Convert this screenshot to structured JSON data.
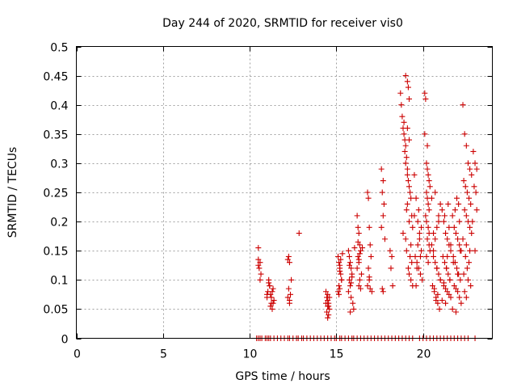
{
  "chart_data": {
    "type": "scatter",
    "title": "Day 244 of 2020, SRMTID for receiver vis0",
    "xlabel": "GPS time / hours",
    "ylabel": "SRMTID / TECUs",
    "xlim": [
      0,
      24
    ],
    "ylim": [
      0,
      0.5
    ],
    "xticks": [
      0,
      5,
      10,
      15,
      20
    ],
    "yticks": [
      0,
      0.05,
      0.1,
      0.15,
      0.2,
      0.25,
      0.3,
      0.35,
      0.4,
      0.45,
      0.5
    ],
    "grid": true,
    "legend": "none",
    "marker": "+",
    "series_color": "#cc0000",
    "series": [
      {
        "name": "SRMTID vis0",
        "x": [
          10.4,
          10.5,
          10.6,
          10.7,
          10.9,
          11.0,
          11.1,
          11.2,
          11.4,
          11.6,
          11.8,
          12.0,
          12.2,
          12.3,
          12.5,
          12.7,
          12.8,
          13.0,
          13.1,
          13.3,
          13.5,
          13.7,
          13.9,
          14.1,
          14.3,
          14.5,
          14.7,
          14.9,
          15.0,
          15.2,
          15.3,
          15.5,
          15.7,
          15.9,
          16.0,
          16.2,
          16.4,
          16.6,
          16.8,
          17.0,
          17.2,
          17.4,
          17.6,
          17.8,
          18.0,
          18.2,
          18.4,
          18.6,
          18.8,
          19.0,
          19.2,
          19.4,
          19.8,
          20.0,
          20.2,
          20.4,
          20.6,
          20.8,
          21.0,
          21.2,
          21.4,
          21.6,
          21.8,
          22.0,
          22.2,
          22.4,
          22.6,
          23.0,
          10.5,
          10.5,
          10.55,
          10.6,
          10.6,
          10.65,
          10.5,
          11.0,
          11.05,
          11.1,
          11.15,
          11.2,
          11.25,
          11.3,
          11.35,
          11.4,
          11.1,
          11.2,
          11.3,
          11.0,
          11.15,
          11.25,
          11.35,
          12.2,
          12.25,
          12.3,
          12.25,
          12.2,
          12.3,
          12.4,
          12.35,
          12.3,
          12.85,
          14.4,
          14.45,
          14.5,
          14.55,
          14.6,
          14.5,
          14.45,
          14.55,
          14.5,
          14.6,
          14.4,
          14.5,
          14.55,
          15.1,
          15.15,
          15.2,
          15.25,
          15.3,
          15.15,
          15.2,
          15.1,
          15.25,
          15.2,
          15.3,
          15.15,
          15.35,
          15.2,
          15.7,
          15.75,
          15.8,
          15.85,
          15.9,
          15.75,
          15.8,
          15.7,
          15.85,
          15.95,
          16.0,
          15.8,
          15.9,
          15.75,
          16.05,
          15.85,
          16.2,
          16.25,
          16.3,
          16.35,
          16.4,
          16.25,
          16.3,
          16.2,
          16.45,
          16.35,
          16.3,
          16.4,
          16.5,
          16.25,
          16.35,
          16.3,
          16.8,
          16.85,
          16.9,
          16.95,
          17.0,
          16.85,
          16.9,
          16.8,
          16.95,
          17.05,
          16.9,
          17.6,
          17.7,
          17.65,
          17.75,
          17.7,
          17.6,
          17.8,
          17.65,
          17.7,
          18.1,
          18.2,
          18.15,
          18.25,
          18.7,
          18.75,
          18.8,
          18.85,
          18.9,
          18.95,
          19.0,
          19.05,
          19.1,
          19.15,
          19.2,
          19.25,
          19.3,
          19.35,
          19.4,
          19.0,
          19.05,
          19.1,
          19.15,
          19.2,
          18.9,
          18.95,
          19.0,
          19.1,
          19.2,
          19.3,
          19.25,
          19.35,
          19.15,
          19.05,
          18.85,
          19.1,
          19.2,
          19.3,
          19.4,
          19.0,
          19.1,
          19.2,
          19.5,
          19.6,
          19.7,
          19.8,
          19.9,
          19.55,
          19.65,
          19.75,
          19.85,
          19.95,
          19.6,
          19.7,
          19.8,
          19.9,
          19.5,
          19.75,
          19.65,
          19.85,
          20.1,
          20.15,
          20.2,
          20.25,
          20.3,
          20.35,
          20.4,
          20.2,
          20.25,
          20.3,
          20.35,
          20.15,
          20.2,
          20.3,
          20.25,
          20.35,
          20.4,
          20.2,
          20.3,
          20.1,
          20.25,
          20.35,
          20.5,
          20.6,
          20.7,
          20.8,
          20.9,
          21.0,
          20.55,
          20.65,
          20.75,
          20.85,
          20.95,
          20.6,
          20.7,
          20.8,
          20.9,
          21.0,
          20.5,
          20.7,
          20.9,
          20.6,
          20.8,
          21.0,
          20.65,
          20.85,
          20.75,
          21.1,
          21.2,
          21.3,
          21.4,
          21.5,
          21.6,
          21.15,
          21.25,
          21.35,
          21.45,
          21.55,
          21.2,
          21.3,
          21.4,
          21.5,
          21.6,
          21.1,
          21.3,
          21.5,
          21.25,
          21.45,
          21.35,
          21.55,
          21.2,
          21.4,
          21.6,
          21.7,
          21.8,
          21.9,
          22.0,
          22.1,
          22.2,
          21.75,
          21.85,
          21.95,
          22.05,
          22.15,
          21.8,
          21.9,
          22.0,
          22.1,
          22.2,
          21.7,
          21.9,
          22.1,
          21.85,
          22.05,
          21.95,
          22.15,
          21.75,
          22.0,
          22.3,
          22.4,
          22.5,
          22.6,
          22.7,
          22.8,
          22.35,
          22.45,
          22.55,
          22.65,
          22.75,
          22.4,
          22.5,
          22.6,
          22.7,
          22.8,
          22.3,
          22.5,
          22.7,
          22.45,
          22.65,
          22.55,
          22.35,
          22.6,
          22.75,
          22.4,
          22.5,
          22.9,
          23.0,
          23.1,
          22.95,
          23.05,
          23.1,
          22.85,
          23.0
        ],
        "y": [
          0,
          0,
          0,
          0,
          0,
          0,
          0,
          0,
          0,
          0,
          0,
          0,
          0,
          0,
          0,
          0,
          0,
          0,
          0,
          0,
          0,
          0,
          0,
          0,
          0,
          0,
          0,
          0,
          0,
          0,
          0,
          0,
          0,
          0,
          0,
          0,
          0,
          0,
          0,
          0,
          0,
          0,
          0,
          0,
          0,
          0,
          0,
          0,
          0,
          0,
          0,
          0,
          0,
          0,
          0,
          0,
          0,
          0,
          0,
          0,
          0,
          0,
          0,
          0,
          0,
          0,
          0,
          0,
          0.155,
          0.135,
          0.12,
          0.13,
          0.1,
          0.11,
          0.125,
          0.07,
          0.08,
          0.1,
          0.09,
          0.075,
          0.06,
          0.05,
          0.085,
          0.065,
          0.095,
          0.055,
          0.08,
          0.075,
          0.09,
          0.07,
          0.06,
          0.135,
          0.14,
          0.13,
          0.085,
          0.07,
          0.065,
          0.1,
          0.075,
          0.06,
          0.18,
          0.08,
          0.07,
          0.065,
          0.06,
          0.05,
          0.055,
          0.045,
          0.04,
          0.035,
          0.07,
          0.06,
          0.075,
          0.055,
          0.14,
          0.13,
          0.12,
          0.11,
          0.1,
          0.09,
          0.085,
          0.08,
          0.135,
          0.115,
          0.1,
          0.075,
          0.145,
          0.125,
          0.15,
          0.14,
          0.13,
          0.12,
          0.11,
          0.1,
          0.09,
          0.08,
          0.07,
          0.06,
          0.05,
          0.045,
          0.105,
          0.125,
          0.155,
          0.095,
          0.21,
          0.19,
          0.18,
          0.16,
          0.15,
          0.14,
          0.13,
          0.12,
          0.11,
          0.1,
          0.09,
          0.085,
          0.155,
          0.165,
          0.145,
          0.135,
          0.25,
          0.24,
          0.19,
          0.16,
          0.14,
          0.12,
          0.1,
          0.09,
          0.085,
          0.08,
          0.105,
          0.29,
          0.27,
          0.25,
          0.23,
          0.21,
          0.19,
          0.17,
          0.085,
          0.08,
          0.15,
          0.14,
          0.12,
          0.09,
          0.42,
          0.4,
          0.38,
          0.36,
          0.35,
          0.34,
          0.33,
          0.31,
          0.29,
          0.27,
          0.26,
          0.25,
          0.24,
          0.21,
          0.19,
          0.17,
          0.15,
          0.44,
          0.43,
          0.41,
          0.37,
          0.32,
          0.3,
          0.28,
          0.2,
          0.16,
          0.14,
          0.13,
          0.12,
          0.22,
          0.18,
          0.23,
          0.11,
          0.1,
          0.09,
          0.45,
          0.36,
          0.34,
          0.28,
          0.24,
          0.2,
          0.18,
          0.15,
          0.14,
          0.13,
          0.12,
          0.11,
          0.1,
          0.09,
          0.16,
          0.17,
          0.19,
          0.21,
          0.22,
          0.12,
          0.14,
          0.42,
          0.41,
          0.3,
          0.29,
          0.28,
          0.27,
          0.26,
          0.25,
          0.24,
          0.23,
          0.22,
          0.21,
          0.2,
          0.19,
          0.17,
          0.16,
          0.15,
          0.14,
          0.13,
          0.35,
          0.33,
          0.18,
          0.16,
          0.14,
          0.13,
          0.12,
          0.11,
          0.1,
          0.09,
          0.08,
          0.07,
          0.06,
          0.05,
          0.15,
          0.17,
          0.19,
          0.2,
          0.23,
          0.24,
          0.25,
          0.21,
          0.18,
          0.12,
          0.1,
          0.085,
          0.075,
          0.065,
          0.22,
          0.2,
          0.18,
          0.17,
          0.16,
          0.15,
          0.14,
          0.13,
          0.12,
          0.11,
          0.1,
          0.09,
          0.085,
          0.08,
          0.075,
          0.07,
          0.065,
          0.06,
          0.19,
          0.21,
          0.23,
          0.12,
          0.1,
          0.095,
          0.14,
          0.16,
          0.21,
          0.19,
          0.18,
          0.17,
          0.16,
          0.15,
          0.14,
          0.13,
          0.12,
          0.11,
          0.1,
          0.09,
          0.085,
          0.08,
          0.07,
          0.06,
          0.05,
          0.045,
          0.2,
          0.22,
          0.23,
          0.24,
          0.15,
          0.13,
          0.11,
          0.4,
          0.35,
          0.33,
          0.3,
          0.29,
          0.28,
          0.27,
          0.26,
          0.25,
          0.24,
          0.23,
          0.22,
          0.21,
          0.2,
          0.19,
          0.18,
          0.17,
          0.16,
          0.15,
          0.14,
          0.13,
          0.12,
          0.11,
          0.1,
          0.09,
          0.08,
          0.07,
          0.32,
          0.3,
          0.29,
          0.26,
          0.25,
          0.22,
          0.2,
          0.15
        ]
      }
    ]
  }
}
